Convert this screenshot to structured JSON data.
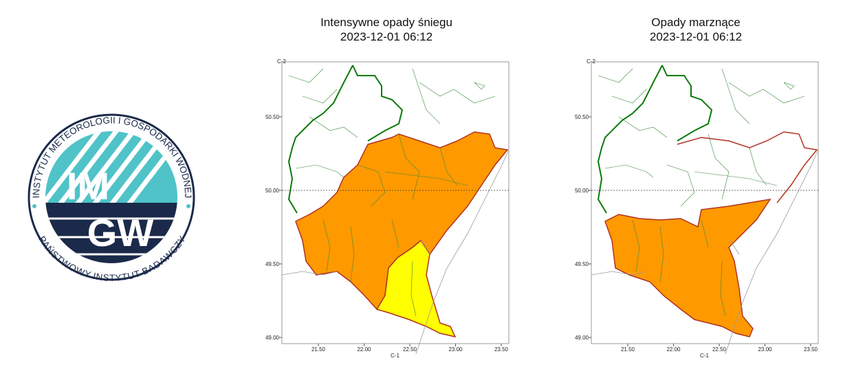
{
  "logo": {
    "top_text": "INSTYTUT METEOROLOGII I GOSPODARKI WODNEJ",
    "bottom_text": "PAŃSTWOWY INSTYTUT BADAWCZY",
    "line1": "IM",
    "line2": "GW"
  },
  "maps": [
    {
      "title": "Intensywne opady śniegu",
      "time": "2023-12-01 06:12",
      "corner_top": "C-2",
      "corner_bottom": "C-1",
      "yticks": [
        "50.50",
        "50.00",
        "49.50",
        "49.00"
      ],
      "xticks": [
        "21.50",
        "22.00",
        "22.50",
        "23.00",
        "23.50"
      ]
    },
    {
      "title": "Opady marznące",
      "time": "2023-12-01 06:12",
      "corner_top": "C-2",
      "corner_bottom": "C-1",
      "yticks": [
        "50.50",
        "50.00",
        "49.50",
        "49.00"
      ],
      "xticks": [
        "21.50",
        "22.00",
        "22.50",
        "23.00",
        "23.50"
      ]
    }
  ]
}
